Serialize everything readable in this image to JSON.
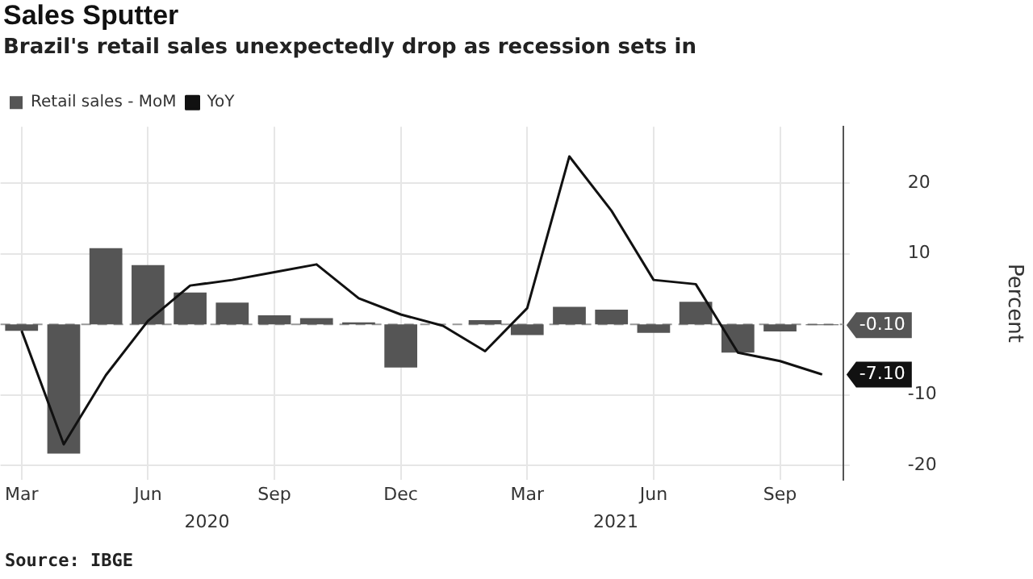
{
  "chart_data": {
    "type": "bar",
    "title": "Sales Sputter",
    "subtitle": "Brazil's retail sales unexpectedly drop as recession sets in",
    "ylabel": "Percent",
    "categories": [
      "Mar",
      null,
      null,
      "Jun",
      null,
      null,
      "Sep",
      null,
      null,
      "Dec",
      null,
      null,
      "Mar",
      null,
      null,
      "Jun",
      null,
      null,
      "Sep",
      null
    ],
    "series": [
      {
        "name": "Retail sales - MoM",
        "color": "#555555",
        "values": [
          -0.9,
          -18.3,
          10.8,
          8.4,
          4.5,
          3.1,
          1.3,
          0.9,
          0.3,
          -6.1,
          0,
          0.6,
          -1.5,
          2.5,
          2.1,
          -1.2,
          3.2,
          -4.0,
          -1.0,
          -0.1
        ]
      },
      {
        "name": "YoY",
        "type": "line",
        "color": "#111111",
        "values": [
          -0.9,
          -17.0,
          -7.2,
          0.5,
          5.5,
          6.3,
          7.4,
          8.5,
          3.7,
          1.4,
          -0.2,
          -3.8,
          2.3,
          23.8,
          16.1,
          6.3,
          5.7,
          -4.0,
          -5.2,
          -7.1
        ]
      }
    ],
    "ylim": [
      -22,
      28
    ],
    "yticks": [
      -20,
      -10,
      10,
      20
    ],
    "grid": true,
    "legend": "top left",
    "marker": "none",
    "ref_lines": [
      {
        "axis": "y",
        "value": 0,
        "color": "#999999",
        "line_style": "dashed"
      }
    ],
    "annotations": [
      "2020",
      "2021",
      "-0.10",
      "-7.10",
      "Source: IBGE"
    ]
  }
}
